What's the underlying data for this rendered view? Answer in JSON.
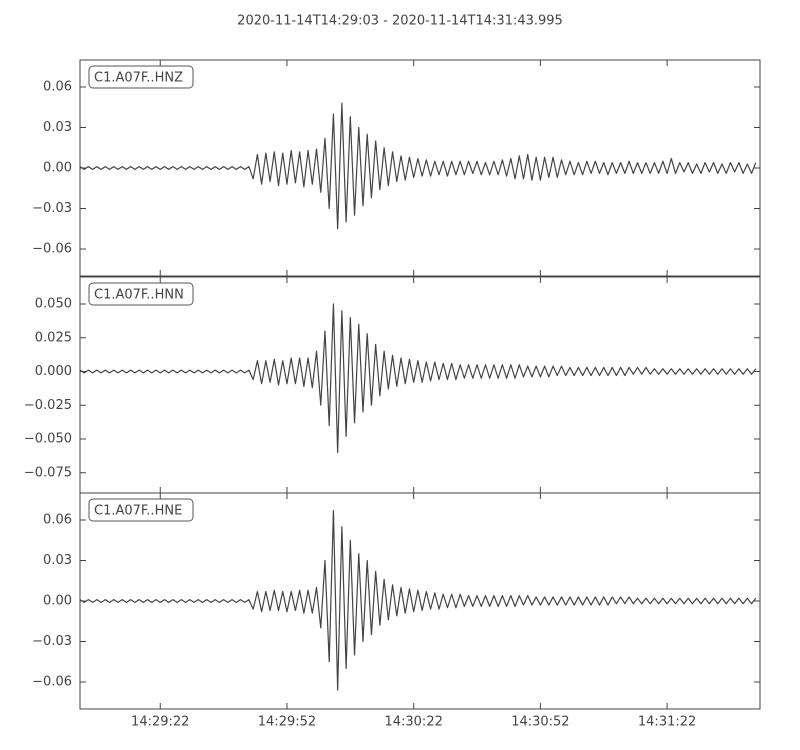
{
  "title": "2020-11-14T14:29:03  -  2020-11-14T14:31:43.995",
  "chart_data": [
    {
      "type": "line",
      "xlim": [
        0,
        160.995
      ],
      "ylim": [
        -0.08,
        0.08
      ],
      "yticks": [
        0.06,
        0.03,
        {
          "value": 0,
          "label": "0.00"
        },
        {
          "value": -0.03,
          "label": "−0.03"
        },
        {
          "value": -0.06,
          "label": "−0.06"
        }
      ],
      "x": [
        0,
        1,
        2,
        3,
        4,
        5,
        6,
        7,
        8,
        9,
        10,
        11,
        12,
        13,
        14,
        15,
        16,
        17,
        18,
        19,
        20,
        21,
        22,
        23,
        24,
        25,
        26,
        27,
        28,
        29,
        30,
        31,
        32,
        33,
        34,
        35,
        36,
        37,
        38,
        39,
        40,
        41,
        42,
        43,
        44,
        45,
        46,
        47,
        48,
        49,
        50,
        51,
        52,
        53,
        54,
        55,
        56,
        57,
        58,
        59,
        60,
        61,
        62,
        63,
        64,
        65,
        66,
        67,
        68,
        69,
        70,
        71,
        72,
        73,
        74,
        75,
        76,
        77,
        78,
        79,
        80,
        81,
        82,
        83,
        84,
        85,
        86,
        87,
        88,
        89,
        90,
        91,
        92,
        93,
        94,
        95,
        96,
        97,
        98,
        99,
        100,
        101,
        102,
        103,
        104,
        105,
        106,
        107,
        108,
        109,
        110,
        111,
        112,
        113,
        114,
        115,
        116,
        117,
        118,
        119,
        120,
        121,
        122,
        123,
        124,
        125,
        126,
        127,
        128,
        129,
        130,
        131,
        132,
        133,
        134,
        135,
        136,
        137,
        138,
        139,
        140,
        141,
        142,
        143,
        144,
        145,
        146,
        147,
        148,
        149,
        150,
        151,
        152,
        153,
        154,
        155,
        156,
        157,
        158,
        159,
        160
      ],
      "series": [
        {
          "name": "C1.A07F..HNZ",
          "color": "#444444",
          "values": [
            0.001,
            -0.001,
            0.001,
            -0.001,
            0.001,
            -0.001,
            0.001,
            -0.001,
            0.001,
            -0.001,
            0.001,
            -0.001,
            0.001,
            -0.001,
            0.001,
            -0.001,
            0.001,
            -0.001,
            0.001,
            -0.001,
            0.001,
            -0.001,
            0.001,
            -0.001,
            0.001,
            -0.001,
            0.001,
            -0.001,
            0.001,
            -0.001,
            0.001,
            -0.001,
            0.001,
            -0.001,
            0.001,
            -0.001,
            0.001,
            -0.001,
            0.001,
            -0.001,
            0.001,
            -0.008,
            0.01,
            -0.012,
            0.011,
            -0.01,
            0.012,
            -0.013,
            0.011,
            -0.012,
            0.013,
            -0.011,
            0.012,
            -0.014,
            0.013,
            -0.012,
            0.014,
            -0.018,
            0.022,
            -0.03,
            0.04,
            -0.045,
            0.048,
            -0.04,
            0.038,
            -0.035,
            0.03,
            -0.028,
            0.025,
            -0.022,
            0.02,
            -0.016,
            0.015,
            -0.013,
            0.012,
            -0.01,
            0.009,
            -0.009,
            0.008,
            -0.007,
            0.007,
            -0.006,
            0.006,
            -0.006,
            0.005,
            -0.005,
            0.005,
            -0.006,
            0.005,
            -0.005,
            0.005,
            -0.005,
            0.005,
            -0.004,
            0.005,
            -0.005,
            0.004,
            -0.005,
            0.005,
            -0.005,
            0.006,
            -0.006,
            0.007,
            -0.008,
            0.009,
            -0.008,
            0.01,
            -0.009,
            0.008,
            -0.009,
            0.008,
            -0.007,
            0.008,
            -0.007,
            0.006,
            -0.005,
            0.005,
            -0.005,
            0.004,
            -0.005,
            0.005,
            -0.004,
            0.005,
            -0.004,
            0.004,
            -0.005,
            0.004,
            -0.004,
            0.004,
            -0.004,
            0.005,
            -0.004,
            0.004,
            -0.004,
            0.004,
            -0.004,
            0.004,
            -0.004,
            0.005,
            -0.004,
            0.007,
            -0.004,
            0.004,
            -0.003,
            0.004,
            -0.004,
            0.003,
            -0.004,
            0.004,
            -0.003,
            0.004,
            -0.004,
            0.003,
            -0.004,
            0.004,
            -0.003,
            0.004,
            -0.004,
            0.003,
            -0.004,
            0.004
          ]
        }
      ]
    },
    {
      "type": "line",
      "xlim": [
        0,
        160.995
      ],
      "ylim": [
        -0.09,
        0.07
      ],
      "yticks": [
        {
          "value": 0.05,
          "label": "0.050"
        },
        0.025,
        {
          "value": 0,
          "label": "0.000"
        },
        {
          "value": -0.025,
          "label": "−0.025"
        },
        {
          "value": -0.05,
          "label": "−0.050"
        },
        {
          "value": -0.075,
          "label": "−0.075"
        }
      ],
      "x": [
        0,
        1,
        2,
        3,
        4,
        5,
        6,
        7,
        8,
        9,
        10,
        11,
        12,
        13,
        14,
        15,
        16,
        17,
        18,
        19,
        20,
        21,
        22,
        23,
        24,
        25,
        26,
        27,
        28,
        29,
        30,
        31,
        32,
        33,
        34,
        35,
        36,
        37,
        38,
        39,
        40,
        41,
        42,
        43,
        44,
        45,
        46,
        47,
        48,
        49,
        50,
        51,
        52,
        53,
        54,
        55,
        56,
        57,
        58,
        59,
        60,
        61,
        62,
        63,
        64,
        65,
        66,
        67,
        68,
        69,
        70,
        71,
        72,
        73,
        74,
        75,
        76,
        77,
        78,
        79,
        80,
        81,
        82,
        83,
        84,
        85,
        86,
        87,
        88,
        89,
        90,
        91,
        92,
        93,
        94,
        95,
        96,
        97,
        98,
        99,
        100,
        101,
        102,
        103,
        104,
        105,
        106,
        107,
        108,
        109,
        110,
        111,
        112,
        113,
        114,
        115,
        116,
        117,
        118,
        119,
        120,
        121,
        122,
        123,
        124,
        125,
        126,
        127,
        128,
        129,
        130,
        131,
        132,
        133,
        134,
        135,
        136,
        137,
        138,
        139,
        140,
        141,
        142,
        143,
        144,
        145,
        146,
        147,
        148,
        149,
        150,
        151,
        152,
        153,
        154,
        155,
        156,
        157,
        158,
        159,
        160
      ],
      "series": [
        {
          "name": "C1.A07F..HNN",
          "color": "#444444",
          "values": [
            0.001,
            -0.001,
            0.001,
            -0.001,
            0.001,
            -0.001,
            0.001,
            -0.001,
            0.001,
            -0.001,
            0.001,
            -0.001,
            0.001,
            -0.001,
            0.001,
            -0.001,
            0.001,
            -0.001,
            0.001,
            -0.001,
            0.001,
            -0.001,
            0.001,
            -0.001,
            0.001,
            -0.001,
            0.001,
            -0.001,
            0.001,
            -0.001,
            0.001,
            -0.001,
            0.001,
            -0.001,
            0.001,
            -0.001,
            0.001,
            -0.001,
            0.001,
            -0.001,
            0.001,
            -0.006,
            0.008,
            -0.009,
            0.008,
            -0.008,
            0.009,
            -0.01,
            0.008,
            -0.009,
            0.01,
            -0.009,
            0.01,
            -0.011,
            0.01,
            -0.012,
            0.015,
            -0.025,
            0.03,
            -0.04,
            0.05,
            -0.06,
            0.045,
            -0.048,
            0.04,
            -0.038,
            0.035,
            -0.03,
            0.028,
            -0.025,
            0.02,
            -0.018,
            0.015,
            -0.013,
            0.012,
            -0.011,
            0.01,
            -0.009,
            0.009,
            -0.008,
            0.008,
            -0.008,
            0.007,
            -0.007,
            0.007,
            -0.006,
            0.006,
            -0.006,
            0.006,
            -0.006,
            0.005,
            -0.005,
            0.005,
            -0.005,
            0.005,
            -0.005,
            0.005,
            -0.005,
            0.005,
            -0.005,
            0.005,
            -0.005,
            0.005,
            -0.005,
            0.005,
            -0.004,
            0.004,
            -0.004,
            0.004,
            -0.004,
            0.004,
            -0.004,
            0.004,
            -0.003,
            0.004,
            -0.003,
            0.003,
            -0.003,
            0.003,
            -0.003,
            0.003,
            -0.003,
            0.003,
            -0.003,
            0.003,
            -0.003,
            0.003,
            -0.003,
            0.003,
            -0.003,
            0.003,
            -0.002,
            0.003,
            -0.002,
            0.003,
            -0.002,
            0.002,
            -0.002,
            0.002,
            -0.002,
            0.002,
            -0.002,
            0.002,
            -0.002,
            0.002,
            -0.002,
            0.002,
            -0.002,
            0.002,
            -0.002,
            0.002,
            -0.002,
            0.002,
            -0.002,
            0.002,
            -0.002,
            0.002,
            -0.002,
            0.002,
            -0.002,
            0.002
          ]
        }
      ]
    },
    {
      "type": "line",
      "xlim": [
        0,
        160.995
      ],
      "ylim": [
        -0.08,
        0.08
      ],
      "xticks": [
        {
          "value": 19,
          "label": "14:29:22"
        },
        {
          "value": 49,
          "label": "14:29:52"
        },
        {
          "value": 79,
          "label": "14:30:22"
        },
        {
          "value": 109,
          "label": "14:30:52"
        },
        {
          "value": 139,
          "label": "14:31:22"
        }
      ],
      "yticks": [
        0.06,
        0.03,
        {
          "value": 0,
          "label": "0.00"
        },
        {
          "value": -0.03,
          "label": "−0.03"
        },
        {
          "value": -0.06,
          "label": "−0.06"
        }
      ],
      "x": [
        0,
        1,
        2,
        3,
        4,
        5,
        6,
        7,
        8,
        9,
        10,
        11,
        12,
        13,
        14,
        15,
        16,
        17,
        18,
        19,
        20,
        21,
        22,
        23,
        24,
        25,
        26,
        27,
        28,
        29,
        30,
        31,
        32,
        33,
        34,
        35,
        36,
        37,
        38,
        39,
        40,
        41,
        42,
        43,
        44,
        45,
        46,
        47,
        48,
        49,
        50,
        51,
        52,
        53,
        54,
        55,
        56,
        57,
        58,
        59,
        60,
        61,
        62,
        63,
        64,
        65,
        66,
        67,
        68,
        69,
        70,
        71,
        72,
        73,
        74,
        75,
        76,
        77,
        78,
        79,
        80,
        81,
        82,
        83,
        84,
        85,
        86,
        87,
        88,
        89,
        90,
        91,
        92,
        93,
        94,
        95,
        96,
        97,
        98,
        99,
        100,
        101,
        102,
        103,
        104,
        105,
        106,
        107,
        108,
        109,
        110,
        111,
        112,
        113,
        114,
        115,
        116,
        117,
        118,
        119,
        120,
        121,
        122,
        123,
        124,
        125,
        126,
        127,
        128,
        129,
        130,
        131,
        132,
        133,
        134,
        135,
        136,
        137,
        138,
        139,
        140,
        141,
        142,
        143,
        144,
        145,
        146,
        147,
        148,
        149,
        150,
        151,
        152,
        153,
        154,
        155,
        156,
        157,
        158,
        159,
        160
      ],
      "series": [
        {
          "name": "C1.A07F..HNE",
          "color": "#444444",
          "values": [
            0.001,
            -0.001,
            0.001,
            -0.001,
            0.001,
            -0.001,
            0.001,
            -0.001,
            0.001,
            -0.001,
            0.001,
            -0.001,
            0.001,
            -0.001,
            0.001,
            -0.001,
            0.001,
            -0.001,
            0.001,
            -0.001,
            0.001,
            -0.001,
            0.001,
            -0.001,
            0.001,
            -0.001,
            0.001,
            -0.001,
            0.001,
            -0.001,
            0.001,
            -0.001,
            0.001,
            -0.001,
            0.001,
            -0.001,
            0.001,
            -0.001,
            0.001,
            -0.001,
            0.001,
            -0.006,
            0.007,
            -0.008,
            0.007,
            -0.007,
            0.008,
            -0.007,
            0.007,
            -0.008,
            0.007,
            -0.007,
            0.008,
            -0.009,
            0.008,
            -0.009,
            0.01,
            -0.02,
            0.03,
            -0.045,
            0.067,
            -0.066,
            0.055,
            -0.05,
            0.045,
            -0.04,
            0.035,
            -0.03,
            0.03,
            -0.025,
            0.022,
            -0.018,
            0.016,
            -0.014,
            0.012,
            -0.011,
            0.01,
            -0.009,
            0.009,
            -0.008,
            0.008,
            -0.007,
            0.007,
            -0.006,
            0.006,
            -0.006,
            0.005,
            -0.005,
            0.005,
            -0.005,
            0.005,
            -0.004,
            0.004,
            -0.004,
            0.004,
            -0.004,
            0.004,
            -0.004,
            0.004,
            -0.004,
            0.004,
            -0.004,
            0.004,
            -0.004,
            0.004,
            -0.003,
            0.004,
            -0.003,
            0.003,
            -0.003,
            0.003,
            -0.003,
            0.003,
            -0.003,
            0.003,
            -0.003,
            0.003,
            -0.003,
            0.003,
            -0.003,
            0.003,
            -0.003,
            0.003,
            -0.003,
            0.003,
            -0.003,
            0.003,
            -0.002,
            0.003,
            -0.002,
            0.003,
            -0.002,
            0.002,
            -0.002,
            0.002,
            -0.002,
            0.002,
            -0.002,
            0.002,
            -0.002,
            0.002,
            -0.002,
            0.002,
            -0.002,
            0.002,
            -0.002,
            0.002,
            -0.002,
            0.002,
            -0.002,
            0.002,
            -0.002,
            0.002,
            -0.002,
            0.002,
            -0.002,
            0.002,
            -0.002,
            0.002,
            -0.002,
            0.002
          ]
        }
      ]
    }
  ]
}
